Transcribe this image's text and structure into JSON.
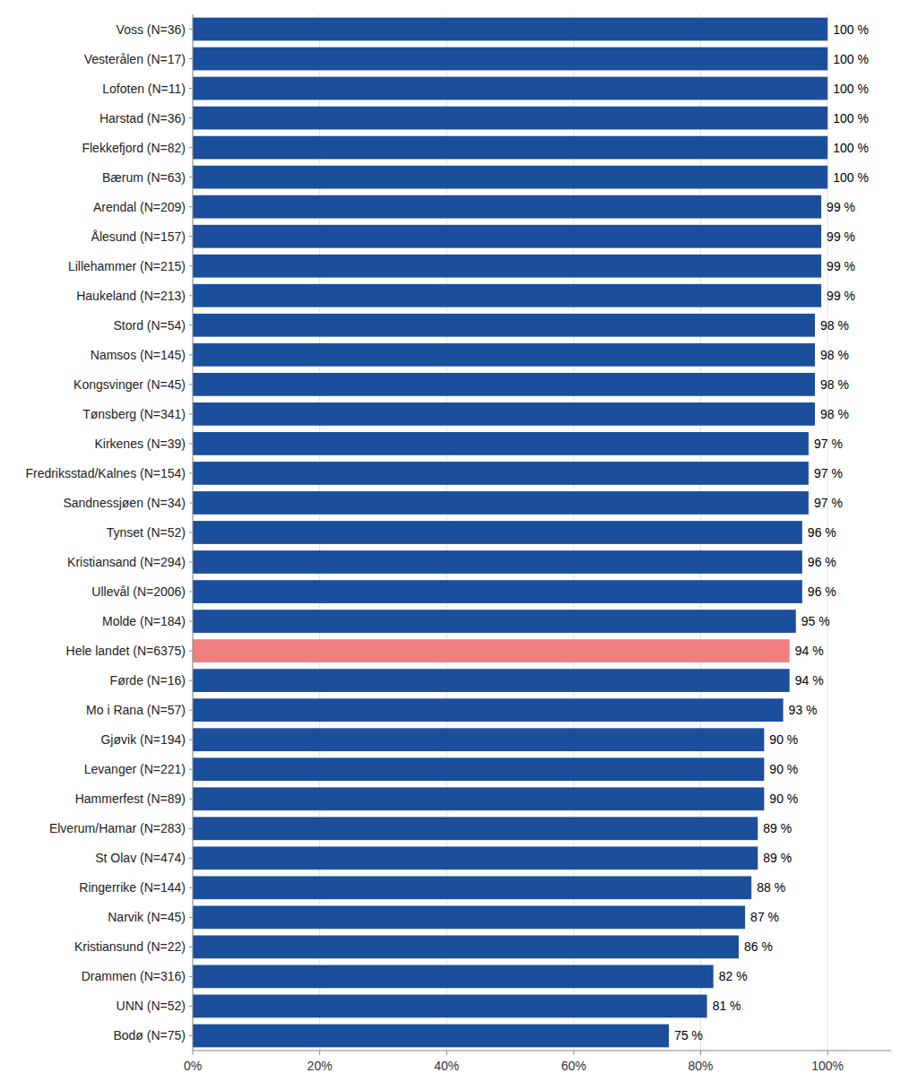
{
  "chart_data": {
    "type": "bar",
    "orientation": "horizontal",
    "categories": [
      "Voss (N=36)",
      "Vesterålen (N=17)",
      "Lofoten (N=11)",
      "Harstad (N=36)",
      "Flekkefjord (N=82)",
      "Bærum (N=63)",
      "Arendal (N=209)",
      "Ålesund (N=157)",
      "Lillehammer (N=215)",
      "Haukeland (N=213)",
      "Stord (N=54)",
      "Namsos (N=145)",
      "Kongsvinger (N=45)",
      "Tønsberg (N=341)",
      "Kirkenes (N=39)",
      "Fredriksstad/Kalnes (N=154)",
      "Sandnessjøen (N=34)",
      "Tynset (N=52)",
      "Kristiansand (N=294)",
      "Ullevål (N=2006)",
      "Molde (N=184)",
      "Hele landet (N=6375)",
      "Førde (N=16)",
      "Mo i Rana (N=57)",
      "Gjøvik (N=194)",
      "Levanger (N=221)",
      "Hammerfest (N=89)",
      "Elverum/Hamar (N=283)",
      "St Olav (N=474)",
      "Ringerrike (N=144)",
      "Narvik (N=45)",
      "Kristiansund (N=22)",
      "Drammen (N=316)",
      "UNN (N=52)",
      "Bodø (N=75)"
    ],
    "values": [
      100,
      100,
      100,
      100,
      100,
      100,
      99,
      99,
      99,
      99,
      98,
      98,
      98,
      98,
      97,
      97,
      97,
      96,
      96,
      96,
      95,
      94,
      94,
      93,
      90,
      90,
      90,
      89,
      89,
      88,
      87,
      86,
      82,
      81,
      75
    ],
    "value_labels": [
      "100 %",
      "100 %",
      "100 %",
      "100 %",
      "100 %",
      "100 %",
      "99 %",
      "99 %",
      "99 %",
      "99 %",
      "98 %",
      "98 %",
      "98 %",
      "98 %",
      "97 %",
      "97 %",
      "97 %",
      "96 %",
      "96 %",
      "96 %",
      "95 %",
      "94 %",
      "94 %",
      "93 %",
      "90 %",
      "90 %",
      "90 %",
      "89 %",
      "89 %",
      "88 %",
      "87 %",
      "86 %",
      "82 %",
      "81 %",
      "75 %"
    ],
    "colors": [
      "#1B4F9C",
      "#1B4F9C",
      "#1B4F9C",
      "#1B4F9C",
      "#1B4F9C",
      "#1B4F9C",
      "#1B4F9C",
      "#1B4F9C",
      "#1B4F9C",
      "#1B4F9C",
      "#1B4F9C",
      "#1B4F9C",
      "#1B4F9C",
      "#1B4F9C",
      "#1B4F9C",
      "#1B4F9C",
      "#1B4F9C",
      "#1B4F9C",
      "#1B4F9C",
      "#1B4F9C",
      "#1B4F9C",
      "#F08080",
      "#1B4F9C",
      "#1B4F9C",
      "#1B4F9C",
      "#1B4F9C",
      "#1B4F9C",
      "#1B4F9C",
      "#1B4F9C",
      "#1B4F9C",
      "#1B4F9C",
      "#1B4F9C",
      "#1B4F9C",
      "#1B4F9C",
      "#1B4F9C"
    ],
    "data_labels": true,
    "xlim": [
      0,
      110
    ],
    "xticks": [
      {
        "value": 0,
        "label": "0%"
      },
      {
        "value": 20,
        "label": "20%"
      },
      {
        "value": 40,
        "label": "40%"
      },
      {
        "value": 60,
        "label": "60%"
      },
      {
        "value": 80,
        "label": "80%"
      },
      {
        "value": 100,
        "label": "100%"
      }
    ],
    "grid": true
  }
}
